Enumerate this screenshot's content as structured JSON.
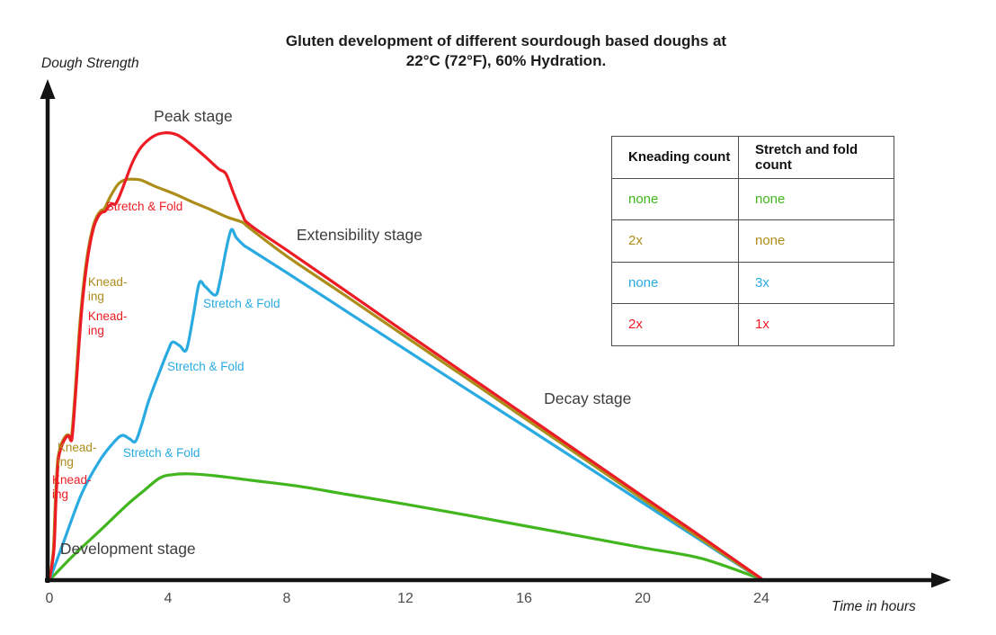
{
  "title": {
    "line1": "Gluten development of different sourdough based doughs at",
    "line2": "22°C (72°F), 60% Hydration."
  },
  "axes": {
    "y_label": "Dough Strength",
    "x_label": "Time in hours",
    "x_ticks": [
      0,
      4,
      8,
      12,
      16,
      20,
      24
    ]
  },
  "legend_table": {
    "headers": [
      "Kneading count",
      "Stretch and fold count"
    ],
    "rows": [
      {
        "kneading": "none",
        "stretch_fold": "none",
        "color": "#41b61e",
        "series": "no-knead-no-fold"
      },
      {
        "kneading": "2x",
        "stretch_fold": "none",
        "color": "#ac8d1a",
        "series": "knead-2x-no-fold"
      },
      {
        "kneading": "none",
        "stretch_fold": "3x",
        "color": "#29abe2",
        "series": "no-knead-fold-3x"
      },
      {
        "kneading": "2x",
        "stretch_fold": "1x",
        "color": "#ed1c24",
        "series": "knead-2x-fold-1x"
      }
    ]
  },
  "chart_data": {
    "type": "line",
    "title": "Gluten development of different sourdough based doughs at 22°C (72°F), 60% Hydration.",
    "xlabel": "Time in hours",
    "ylabel": "Dough Strength",
    "xlim": [
      0,
      30
    ],
    "ylim": [
      0,
      100
    ],
    "x_ticks": [
      0,
      4,
      8,
      12,
      16,
      20,
      24
    ],
    "grid": false,
    "legend_position": "top-right-table",
    "series": [
      {
        "name": "no-knead-no-fold",
        "color": "#41b61e",
        "kneading_count": "none",
        "stretch_fold_count": "none",
        "points": [
          [
            0,
            0
          ],
          [
            0.8,
            4.9
          ],
          [
            1.7,
            9.9
          ],
          [
            2.6,
            15
          ],
          [
            3.2,
            18
          ],
          [
            3.7,
            20.4
          ],
          [
            4.1,
            21.1
          ],
          [
            4.7,
            21.3
          ],
          [
            5.6,
            20.9
          ],
          [
            6.8,
            20
          ],
          [
            8.3,
            18.9
          ],
          [
            10,
            17.2
          ],
          [
            12,
            15.2
          ],
          [
            14,
            13.1
          ],
          [
            16,
            10.9
          ],
          [
            18,
            8.7
          ],
          [
            20,
            6.5
          ],
          [
            22,
            4.3
          ],
          [
            24,
            0.2
          ]
        ]
      },
      {
        "name": "no-knead-fold-3x",
        "color": "#29abe2",
        "kneading_count": "none",
        "stretch_fold_count": "3x",
        "points": [
          [
            0,
            0
          ],
          [
            0.5,
            8
          ],
          [
            1.1,
            17.5
          ],
          [
            1.7,
            24
          ],
          [
            2.15,
            27.5
          ],
          [
            2.45,
            29
          ],
          [
            2.7,
            28.3
          ],
          [
            2.9,
            27.8
          ],
          [
            3.1,
            31
          ],
          [
            3.35,
            36
          ],
          [
            3.75,
            42.3
          ],
          [
            4.0,
            46
          ],
          [
            4.15,
            47.7
          ],
          [
            4.4,
            46.9
          ],
          [
            4.62,
            46.2
          ],
          [
            4.85,
            53
          ],
          [
            5.05,
            59.5
          ],
          [
            5.25,
            58.8
          ],
          [
            5.6,
            57.1
          ],
          [
            5.75,
            60
          ],
          [
            5.95,
            66
          ],
          [
            6.13,
            70.2
          ],
          [
            6.3,
            68.6
          ],
          [
            6.55,
            67.1
          ],
          [
            6.73,
            66.4
          ],
          [
            8,
            61.6
          ],
          [
            10,
            53.9
          ],
          [
            12,
            46.2
          ],
          [
            14,
            38.5
          ],
          [
            16,
            30.9
          ],
          [
            18,
            23.2
          ],
          [
            20,
            15.5
          ],
          [
            22,
            7.8
          ],
          [
            24,
            0.1
          ]
        ]
      },
      {
        "name": "knead-2x-no-fold",
        "color": "#ac8d1a",
        "kneading_count": "2x",
        "stretch_fold_count": "none",
        "points": [
          [
            0,
            0
          ],
          [
            0.13,
            6
          ],
          [
            0.2,
            16
          ],
          [
            0.28,
            24
          ],
          [
            0.4,
            27.2
          ],
          [
            0.54,
            28.8
          ],
          [
            0.64,
            29.1
          ],
          [
            0.74,
            28.6
          ],
          [
            0.86,
            37.2
          ],
          [
            1.03,
            51.8
          ],
          [
            1.18,
            60.8
          ],
          [
            1.33,
            67
          ],
          [
            1.48,
            71
          ],
          [
            1.6,
            72.9
          ],
          [
            1.73,
            74
          ],
          [
            1.86,
            74.5
          ],
          [
            2.05,
            76.8
          ],
          [
            2.3,
            79.2
          ],
          [
            2.55,
            80.2
          ],
          [
            2.85,
            80.3
          ],
          [
            3.1,
            80.1
          ],
          [
            3.6,
            78.8
          ],
          [
            4.2,
            77.4
          ],
          [
            4.8,
            75.8
          ],
          [
            5.4,
            74.3
          ],
          [
            6.0,
            72.7
          ],
          [
            6.5,
            71.7
          ],
          [
            6.75,
            70.5
          ],
          [
            8,
            64.9
          ],
          [
            10,
            56.9
          ],
          [
            12,
            48.8
          ],
          [
            14,
            40.7
          ],
          [
            16,
            32.5
          ],
          [
            18,
            24.4
          ],
          [
            20,
            16.2
          ],
          [
            22,
            8.1
          ],
          [
            24,
            0.15
          ]
        ]
      },
      {
        "name": "knead-2x-fold-1x",
        "color": "#ed1c24",
        "kneading_count": "2x",
        "stretch_fold_count": "1x",
        "points": [
          [
            0,
            0
          ],
          [
            0.15,
            6
          ],
          [
            0.22,
            16
          ],
          [
            0.3,
            24
          ],
          [
            0.42,
            27
          ],
          [
            0.56,
            28.6
          ],
          [
            0.66,
            28.9
          ],
          [
            0.76,
            28.4
          ],
          [
            0.88,
            37
          ],
          [
            1.05,
            51.5
          ],
          [
            1.2,
            60.5
          ],
          [
            1.35,
            66.8
          ],
          [
            1.5,
            70.8
          ],
          [
            1.62,
            72.6
          ],
          [
            1.75,
            73.6
          ],
          [
            1.88,
            73.9
          ],
          [
            2.0,
            74.9
          ],
          [
            2.12,
            75.4
          ],
          [
            2.22,
            75.3
          ],
          [
            2.35,
            76.8
          ],
          [
            2.55,
            79.8
          ],
          [
            2.8,
            83.7
          ],
          [
            3.1,
            86.8
          ],
          [
            3.5,
            88.9
          ],
          [
            3.9,
            89.6
          ],
          [
            4.3,
            89.2
          ],
          [
            4.7,
            87.6
          ],
          [
            5.2,
            85.1
          ],
          [
            5.7,
            82.4
          ],
          [
            5.95,
            81.4
          ],
          [
            6.2,
            77.6
          ],
          [
            6.5,
            73.3
          ],
          [
            6.75,
            71.2
          ],
          [
            8,
            66.1
          ],
          [
            10,
            57.9
          ],
          [
            12,
            49.6
          ],
          [
            14,
            41.4
          ],
          [
            16,
            33.2
          ],
          [
            18,
            25
          ],
          [
            20,
            16.8
          ],
          [
            22,
            8.6
          ],
          [
            24,
            0.3
          ]
        ]
      }
    ],
    "stage_annotations": [
      {
        "id": "peak",
        "lines": [
          "Peak stage"
        ],
        "x": 3.52,
        "y": 94.8
      },
      {
        "id": "extensibility",
        "lines": [
          "Extensibility stage"
        ],
        "x": 8.33,
        "y": 71.0
      },
      {
        "id": "decay",
        "lines": [
          "Decay stage"
        ],
        "x": 16.67,
        "y": 38.2
      },
      {
        "id": "development",
        "lines": [
          "Development stage"
        ],
        "x": 0.36,
        "y": 8.1
      }
    ],
    "event_annotations": [
      {
        "id": "red-stretch-fold",
        "lines": [
          "Stretch & Fold"
        ],
        "x": 1.9,
        "y": 76.2,
        "color": "#ed1c24"
      },
      {
        "id": "olive-knead-upper",
        "lines": [
          "Knead-",
          "ing"
        ],
        "x": 1.3,
        "y": 61.1,
        "color": "#ac8d1a"
      },
      {
        "id": "red-knead-upper",
        "lines": [
          "Knead-",
          "ing"
        ],
        "x": 1.3,
        "y": 54.2,
        "color": "#ed1c24"
      },
      {
        "id": "olive-knead-lower",
        "lines": [
          "Knead-",
          "ing"
        ],
        "x": 0.27,
        "y": 27.9,
        "color": "#ac8d1a"
      },
      {
        "id": "red-knead-lower",
        "lines": [
          "Knead-",
          "ing"
        ],
        "x": 0.09,
        "y": 21.4,
        "color": "#ed1c24"
      },
      {
        "id": "blue-stretch-fold-1",
        "lines": [
          "Stretch & Fold"
        ],
        "x": 2.48,
        "y": 26.8,
        "color": "#29abe2"
      },
      {
        "id": "blue-stretch-fold-2",
        "lines": [
          "Stretch & Fold"
        ],
        "x": 3.97,
        "y": 44.1,
        "color": "#29abe2"
      },
      {
        "id": "blue-stretch-fold-3",
        "lines": [
          "Stretch & Fold"
        ],
        "x": 5.18,
        "y": 56.8,
        "color": "#29abe2"
      }
    ],
    "colors": {
      "green": "#41b61e",
      "olive": "#ac8d1a",
      "blue": "#29abe2",
      "red": "#ed1c24",
      "stage_text": "#3d3d3d",
      "axis": "#141414"
    }
  }
}
